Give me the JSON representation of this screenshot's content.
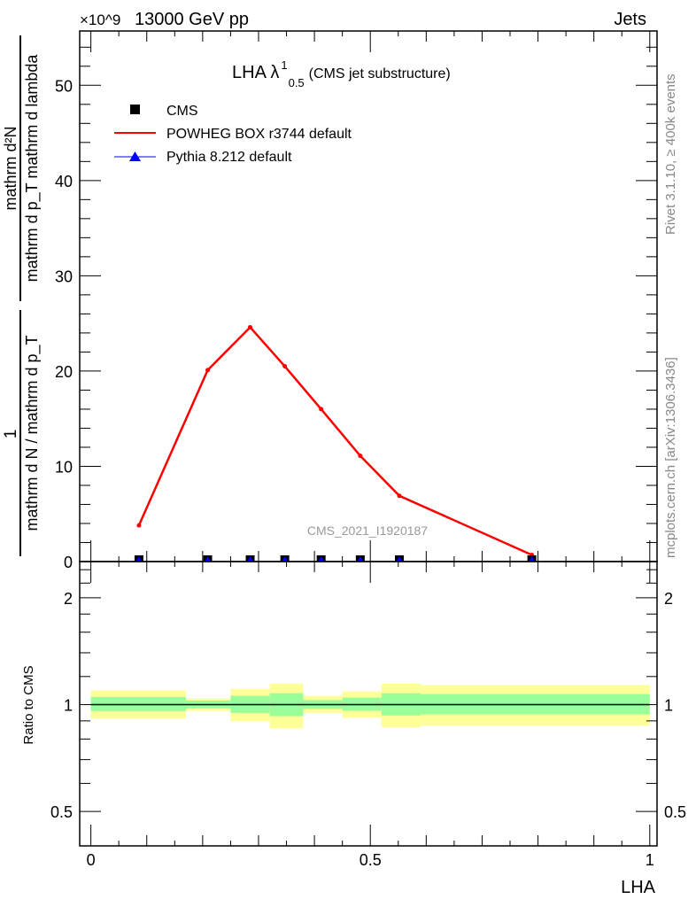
{
  "header": {
    "energy": "13000 GeV pp",
    "process": "Jets",
    "exponent": "×10^9",
    "side_top": "Rivet 3.1.10, ≥ 400k events",
    "side_bottom": "mcplots.cern.ch [arXiv:1306.3436]",
    "watermark": "CMS_2021_I1920187"
  },
  "chart_data": [
    {
      "type": "line",
      "title": "LHA λ",
      "title_sup": "1",
      "title_sub": "0.5",
      "title_suffix": "(CMS jet substructure)",
      "xlabel": "LHA",
      "ylabel_num1": "1",
      "ylabel_den1": "mathrm d N / mathrm d p_T",
      "ylabel_num2": "mathrm d²N",
      "ylabel_den2": "mathrm d p_T mathrm d lambda",
      "xlim": [
        -0.02,
        1.013
      ],
      "ylim": [
        0,
        55.7
      ],
      "y_scale_factor": "1e9",
      "yticks": [
        0,
        10,
        20,
        30,
        40,
        50
      ],
      "xticks": [
        0,
        0.5,
        1
      ],
      "legend": {
        "placement": "top-left",
        "entries": [
          {
            "label": "CMS",
            "marker": "square",
            "color": "#000000"
          },
          {
            "label": "POWHEG BOX r3744 default",
            "marker": "line",
            "color": "#ff0000"
          },
          {
            "label": "Pythia 8.212 default",
            "marker": "triangle",
            "color": "#0000ff"
          }
        ]
      },
      "series": [
        {
          "name": "CMS",
          "x": [
            0.086,
            0.209,
            0.285,
            0.347,
            0.412,
            0.482,
            0.552,
            0.789
          ],
          "y": [
            0,
            0,
            0,
            0,
            0,
            0,
            0,
            0
          ]
        },
        {
          "name": "POWHEG BOX r3744 default",
          "x": [
            0.086,
            0.209,
            0.285,
            0.347,
            0.412,
            0.482,
            0.552,
            0.789
          ],
          "y": [
            3.8,
            20.1,
            24.6,
            20.5,
            16.0,
            11.1,
            6.9,
            0.7
          ]
        },
        {
          "name": "Pythia 8.212 default",
          "x": [
            0.086,
            0.209,
            0.285,
            0.347,
            0.412,
            0.482,
            0.552,
            0.789
          ],
          "y": [
            0,
            0,
            0,
            0,
            0,
            0,
            0,
            0
          ]
        }
      ]
    },
    {
      "type": "area",
      "ylabel": "Ratio to CMS",
      "yscale": "log",
      "ylim": [
        0.4,
        2.53
      ],
      "yticks": [
        0.5,
        1,
        2
      ],
      "xlim": [
        -0.02,
        1.013
      ],
      "xticks": [
        0,
        0.5,
        1
      ],
      "bin_edges": [
        0,
        0.17,
        0.25,
        0.32,
        0.38,
        0.45,
        0.52,
        0.59,
        1.0
      ],
      "band_outer_hi": [
        1.096,
        1.04,
        1.109,
        1.147,
        1.059,
        1.09,
        1.145,
        1.136
      ],
      "band_outer_lo": [
        0.914,
        0.96,
        0.897,
        0.857,
        0.948,
        0.918,
        0.863,
        0.873
      ],
      "band_inner_hi": [
        1.051,
        1.027,
        1.059,
        1.077,
        1.03,
        1.047,
        1.077,
        1.071
      ],
      "band_inner_lo": [
        0.959,
        0.977,
        0.948,
        0.928,
        0.973,
        0.961,
        0.932,
        0.939
      ],
      "colors": {
        "outer": "#ffff99",
        "inner": "#99ff99"
      }
    }
  ]
}
